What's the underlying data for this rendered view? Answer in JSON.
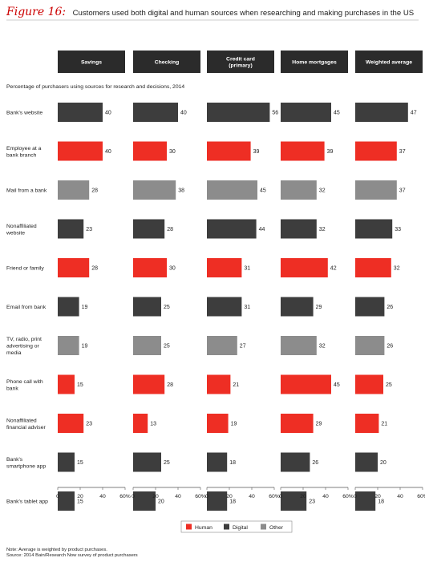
{
  "figure": {
    "label": "Figure 16:",
    "title": "Customers used both digital and human sources when researching and making purchases in the US",
    "subtitle": "Percentage of purchasers using sources for research and decisions, 2014",
    "note": "Note: Average is weighted by product purchases.",
    "source": "Source: 2014 Bain/Research Now survey of product purchasers"
  },
  "colors": {
    "Human": "#ee2e24",
    "Digital": "#3d3d3d",
    "Other": "#8c8c8c",
    "header": "#2b2b2b"
  },
  "chart_data": {
    "type": "bar",
    "orientation": "horizontal",
    "panels": [
      "Savings",
      "Checking",
      "Credit card\n(primary)",
      "Home mortgages",
      "Weighted average"
    ],
    "categories": [
      "Bank's website",
      "Employee at a\nbank branch",
      "Mail from a bank",
      "Nonaffiliated\nwebsite",
      "Friend or family",
      "Email from bank",
      "TV, radio, print\nadvertising or\nmedia",
      "Phone call with\nbank",
      "Nonaffiliated\nfinancial adviser",
      "Bank's\nsmartphone app",
      "Bank's tablet app"
    ],
    "category_types": [
      "Digital",
      "Human",
      "Other",
      "Digital",
      "Human",
      "Digital",
      "Other",
      "Human",
      "Human",
      "Digital",
      "Digital"
    ],
    "series": [
      {
        "panel": "Savings",
        "values": [
          40,
          40,
          28,
          23,
          28,
          19,
          19,
          15,
          23,
          15,
          15
        ]
      },
      {
        "panel": "Checking",
        "values": [
          40,
          30,
          38,
          28,
          30,
          25,
          25,
          28,
          13,
          25,
          20
        ]
      },
      {
        "panel": "Credit card (primary)",
        "values": [
          56,
          39,
          45,
          44,
          31,
          31,
          27,
          21,
          19,
          18,
          18
        ]
      },
      {
        "panel": "Home mortgages",
        "values": [
          45,
          39,
          32,
          32,
          42,
          29,
          32,
          45,
          29,
          26,
          23
        ]
      },
      {
        "panel": "Weighted average",
        "values": [
          47,
          37,
          37,
          33,
          32,
          26,
          26,
          25,
          21,
          20,
          18
        ]
      }
    ],
    "xlim": [
      0,
      60
    ],
    "x_ticks": [
      "0",
      "20",
      "40",
      "60%"
    ],
    "legend": [
      "Human",
      "Digital",
      "Other"
    ],
    "legend_position": "bottom-center",
    "grid": false
  }
}
